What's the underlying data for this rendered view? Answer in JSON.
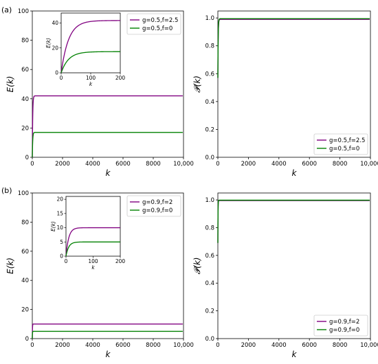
{
  "panel_labels": [
    "(a)",
    "(b)"
  ],
  "chart_data": [
    {
      "id": "a-left",
      "type": "line",
      "panel": "(a)",
      "xlabel": "k",
      "ylabel": "E(k)",
      "xlim": [
        0,
        10000
      ],
      "ylim": [
        0,
        100
      ],
      "xticks": [
        0,
        2000,
        4000,
        6000,
        8000,
        10000
      ],
      "xtick_labels": [
        "0",
        "2000",
        "4000",
        "6000",
        "8000",
        "10,000"
      ],
      "yticks": [
        0,
        20,
        40,
        60,
        80,
        100
      ],
      "legend": "top-right",
      "series": [
        {
          "name": "g=0.5,f=2.5",
          "color": "#800080",
          "plateau": 42,
          "tau": 25
        },
        {
          "name": "g=0.5,f=0",
          "color": "#008000",
          "plateau": 17,
          "tau": 25
        }
      ],
      "inset": {
        "xlabel": "k",
        "ylabel": "E(k)",
        "xlim": [
          0,
          200
        ],
        "ylim": [
          0,
          48
        ],
        "xticks": [
          0,
          100,
          200
        ],
        "yticks": [
          0,
          20,
          40
        ]
      }
    },
    {
      "id": "a-right",
      "type": "line",
      "panel": "(a)",
      "xlabel": "k",
      "ylabel": "𝓟(k)",
      "xlim": [
        0,
        10000
      ],
      "ylim": [
        0,
        1.05
      ],
      "xticks": [
        0,
        2000,
        4000,
        6000,
        8000,
        10000
      ],
      "xtick_labels": [
        "0",
        "2000",
        "4000",
        "6000",
        "8000",
        "10,000"
      ],
      "yticks": [
        0.0,
        0.2,
        0.4,
        0.6,
        0.8,
        1.0
      ],
      "ytick_labels": [
        "0.0",
        "0.2",
        "0.4",
        "0.6",
        "0.8",
        "1.0"
      ],
      "legend": "bottom-right",
      "series": [
        {
          "name": "g=0.5,f=2.5",
          "color": "#800080",
          "start": 0.57,
          "plateau": 0.99,
          "tau": 20
        },
        {
          "name": "g=0.5,f=0",
          "color": "#008000",
          "start": 0.57,
          "plateau": 0.995,
          "tau": 20
        }
      ]
    },
    {
      "id": "b-left",
      "type": "line",
      "panel": "(b)",
      "xlabel": "k",
      "ylabel": "E(k)",
      "xlim": [
        0,
        10000
      ],
      "ylim": [
        0,
        100
      ],
      "xticks": [
        0,
        2000,
        4000,
        6000,
        8000,
        10000
      ],
      "xtick_labels": [
        "0",
        "2000",
        "4000",
        "6000",
        "8000",
        "10,000"
      ],
      "yticks": [
        0,
        20,
        40,
        60,
        80,
        100
      ],
      "legend": "top-right",
      "series": [
        {
          "name": "g=0.9,f=2",
          "color": "#800080",
          "plateau": 10,
          "tau": 10
        },
        {
          "name": "g=0.9,f=0",
          "color": "#008000",
          "plateau": 5,
          "tau": 10
        }
      ],
      "inset": {
        "xlabel": "k",
        "ylabel": "E(k)",
        "xlim": [
          0,
          200
        ],
        "ylim": [
          0,
          21
        ],
        "xticks": [
          0,
          100,
          200
        ],
        "yticks": [
          0,
          5,
          10,
          15,
          20
        ]
      }
    },
    {
      "id": "b-right",
      "type": "line",
      "panel": "(b)",
      "xlabel": "k",
      "ylabel": "𝓟(k)",
      "xlim": [
        0,
        10000
      ],
      "ylim": [
        0,
        1.05
      ],
      "xticks": [
        0,
        2000,
        4000,
        6000,
        8000,
        10000
      ],
      "xtick_labels": [
        "0",
        "2000",
        "4000",
        "6000",
        "8000",
        "10,000"
      ],
      "yticks": [
        0.0,
        0.2,
        0.4,
        0.6,
        0.8,
        1.0
      ],
      "ytick_labels": [
        "0.0",
        "0.2",
        "0.4",
        "0.6",
        "0.8",
        "1.0"
      ],
      "legend": "bottom-right",
      "series": [
        {
          "name": "g=0.9,f=2",
          "color": "#800080",
          "start": 0.69,
          "plateau": 0.995,
          "tau": 10
        },
        {
          "name": "g=0.9,f=0",
          "color": "#008000",
          "start": 0.69,
          "plateau": 0.998,
          "tau": 10
        }
      ]
    }
  ]
}
